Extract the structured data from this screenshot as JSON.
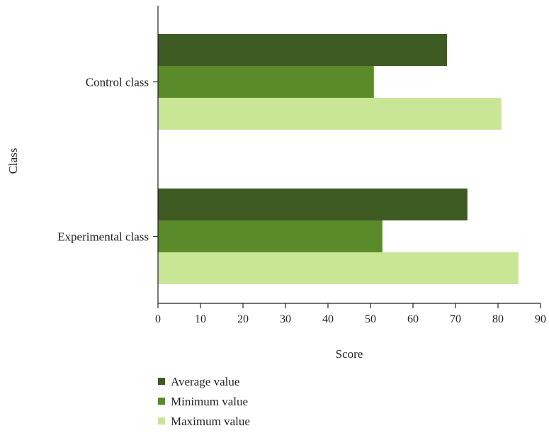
{
  "chart_data": {
    "type": "bar",
    "orientation": "horizontal",
    "categories": [
      "Control class",
      "Experimental class"
    ],
    "series": [
      {
        "name": "Average value",
        "values": [
          68,
          72.8
        ],
        "color": "#3d5a22"
      },
      {
        "name": "Minimum value",
        "values": [
          50.8,
          52.8
        ],
        "color": "#5a8a2a"
      },
      {
        "name": "Maximum value",
        "values": [
          80.8,
          84.8
        ],
        "color": "#c9e596"
      }
    ],
    "xlabel": "Score",
    "ylabel": "Class",
    "xlim": [
      0,
      90
    ],
    "xticks": [
      0,
      10,
      20,
      30,
      40,
      50,
      60,
      70,
      80,
      90
    ],
    "grid": false,
    "legend_position": "bottom"
  }
}
